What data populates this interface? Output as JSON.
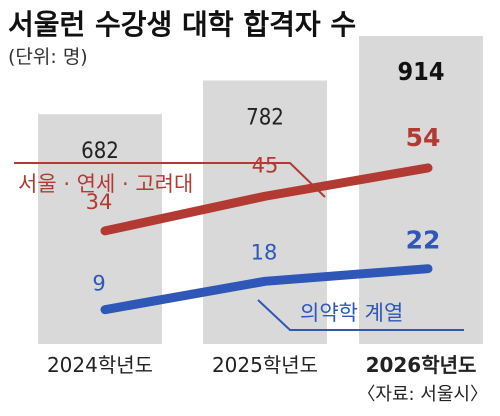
{
  "title": "서울런 수강생 대학 합격자 수",
  "unit": "(단위: 명)",
  "source": "〈자료: 서울시〉",
  "colors": {
    "bar": "#d9d9d9",
    "red": "#b23a32",
    "blue": "#2f57b8"
  },
  "chart_data": {
    "type": "bar",
    "categories": [
      "2024학년도",
      "2025학년도",
      "2026학년도"
    ],
    "values": [
      682,
      782,
      914
    ],
    "overlays": [
      {
        "type": "line",
        "name": "서울 · 연세 · 고려대",
        "values": [
          34,
          45,
          54
        ],
        "color": "#b23a32"
      },
      {
        "type": "line",
        "name": "의약학 계열",
        "values": [
          9,
          18,
          22
        ],
        "color": "#2f57b8"
      }
    ]
  }
}
